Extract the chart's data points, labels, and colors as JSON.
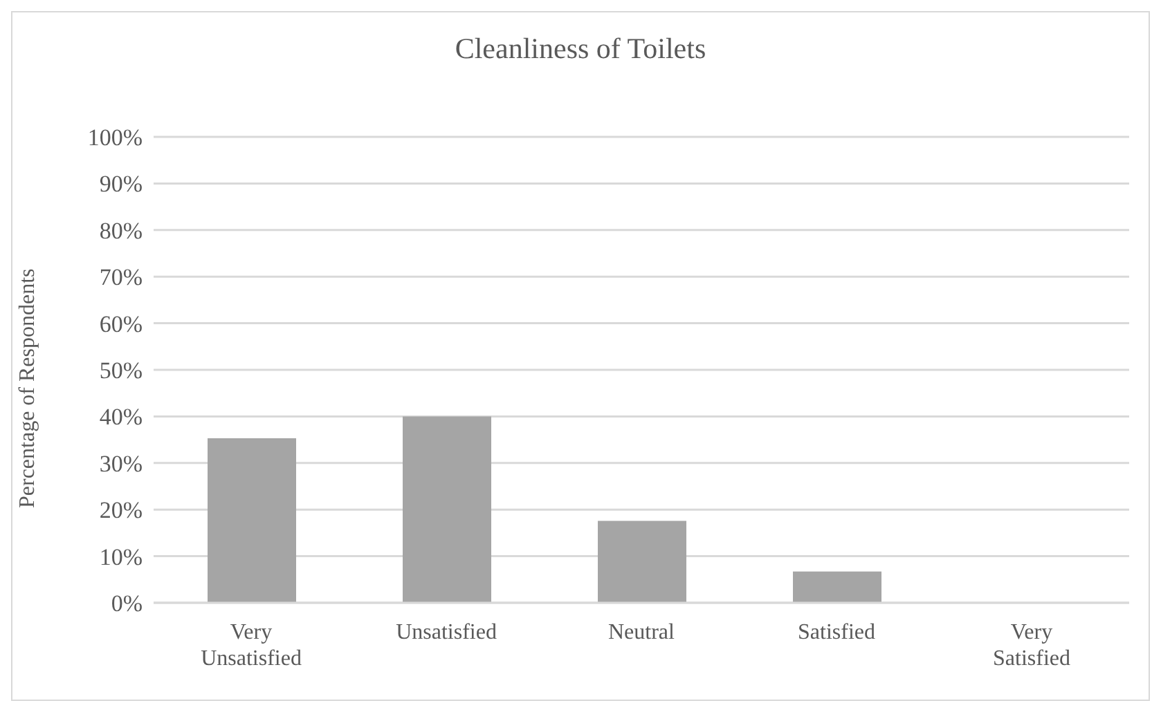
{
  "chart_data": {
    "type": "bar",
    "title": "Cleanliness of Toilets",
    "ylabel": "Percentage of Respondents",
    "categories": [
      "Very Unsatisfied",
      "Unsatisfied",
      "Neutral",
      "Satisfied",
      "Very Satisfied"
    ],
    "values": [
      35.3,
      40,
      17.6,
      6.7,
      0
    ],
    "color": "#a5a5a5",
    "ylim": [
      0,
      100
    ],
    "yticks": [
      {
        "value": 0,
        "label": "0%"
      },
      {
        "value": 10,
        "label": "10%"
      },
      {
        "value": 20,
        "label": "20%"
      },
      {
        "value": 30,
        "label": "30%"
      },
      {
        "value": 40,
        "label": "40%"
      },
      {
        "value": 50,
        "label": "50%"
      },
      {
        "value": 60,
        "label": "60%"
      },
      {
        "value": 70,
        "label": "70%"
      },
      {
        "value": 80,
        "label": "80%"
      },
      {
        "value": 90,
        "label": "90%"
      },
      {
        "value": 100,
        "label": "100%"
      }
    ],
    "grid": "y",
    "legend": false
  }
}
